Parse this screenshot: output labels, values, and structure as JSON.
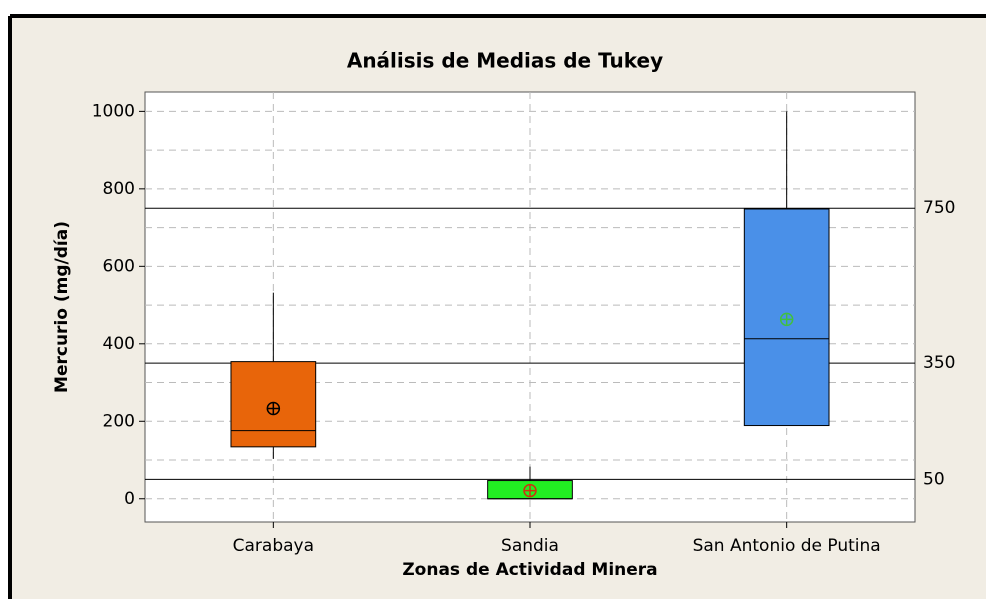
{
  "chart_data": {
    "type": "box",
    "title": "Análisis de Medias de Tukey",
    "xlabel": "Zonas de Actividad Minera",
    "ylabel": "Mercurio (mg/día)",
    "categories": [
      "Carabaya",
      "Sandia",
      "San Antonio de Putina"
    ],
    "boxes": [
      {
        "whisker_low": 103,
        "q1": 134,
        "median": 176,
        "q3": 354,
        "whisker_high": 532,
        "mean": 233,
        "color": "#e8650a",
        "mean_color": "#000000"
      },
      {
        "whisker_low": 0,
        "q1": 0,
        "median": 0,
        "q3": 47,
        "whisker_high": 83,
        "mean": 21,
        "color": "#22ee22",
        "mean_color": "#d03010"
      },
      {
        "whisker_low": 189,
        "q1": 189,
        "median": 413,
        "q3": 748,
        "whisker_high": 1000,
        "mean": 463,
        "color": "#4a90e8",
        "mean_color": "#40c040"
      }
    ],
    "reference_lines": [
      750,
      350,
      50
    ],
    "ylim": [
      -60,
      1050
    ],
    "yticks": [
      0,
      200,
      400,
      600,
      800,
      1000
    ],
    "minor_grid": [
      100,
      300,
      500,
      700,
      900
    ],
    "grid": true
  }
}
